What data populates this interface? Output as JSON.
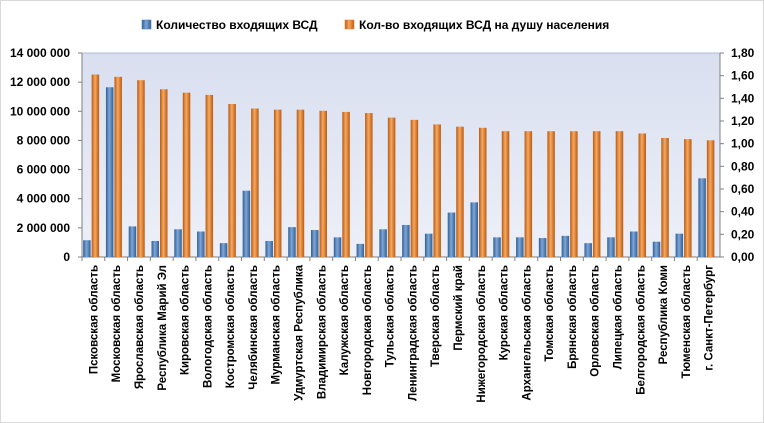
{
  "chart_data": {
    "type": "bar",
    "categories": [
      "Псковская область",
      "Московская область",
      "Ярославская область",
      "Республика Марий Эл",
      "Кировская область",
      "Вологодская область",
      "Костромская область",
      "Челябинская область",
      "Мурманская область",
      "Удмуртская Республика",
      "Владимирская область",
      "Калужская область",
      "Новгородская область",
      "Тульская область",
      "Ленинградская область",
      "Тверская область",
      "Пермский край",
      "Нижегородская область",
      "Курская область",
      "Архангельская область",
      "Томская область",
      "Брянская область",
      "Орловская область",
      "Липецкая область",
      "Белгородская область",
      "Республика Коми",
      "Тюменская область",
      "г. Санкт-Петербург"
    ],
    "series": [
      {
        "name": "Количество входящих ВСД",
        "axis": "left",
        "color": "#4f81bd",
        "values": [
          1150000,
          11650000,
          2100000,
          1100000,
          1900000,
          1750000,
          950000,
          4550000,
          1100000,
          2050000,
          1850000,
          1350000,
          900000,
          1900000,
          2200000,
          1600000,
          3050000,
          3750000,
          1350000,
          1350000,
          1300000,
          1450000,
          950000,
          1350000,
          1750000,
          1050000,
          1600000,
          5400000
        ]
      },
      {
        "name": "Кол-во входящих ВСД на душу населения",
        "axis": "right",
        "color": "#e8843a",
        "values": [
          1.61,
          1.59,
          1.56,
          1.48,
          1.45,
          1.43,
          1.35,
          1.31,
          1.3,
          1.3,
          1.29,
          1.28,
          1.27,
          1.23,
          1.21,
          1.17,
          1.15,
          1.14,
          1.11,
          1.11,
          1.11,
          1.11,
          1.11,
          1.11,
          1.09,
          1.05,
          1.04,
          1.03
        ]
      }
    ],
    "y_left": {
      "range": [
        0,
        14000000
      ],
      "ticks": [
        "0",
        "2 000 000",
        "4 000 000",
        "6 000 000",
        "8 000 000",
        "10 000 000",
        "12 000 000",
        "14 000 000"
      ]
    },
    "y_right": {
      "range": [
        0,
        1.8
      ],
      "ticks": [
        "0,00",
        "0,20",
        "0,40",
        "0,60",
        "0,80",
        "1,00",
        "1,20",
        "1,40",
        "1,60",
        "1,80"
      ]
    },
    "legend_position": "top",
    "grid": false
  }
}
